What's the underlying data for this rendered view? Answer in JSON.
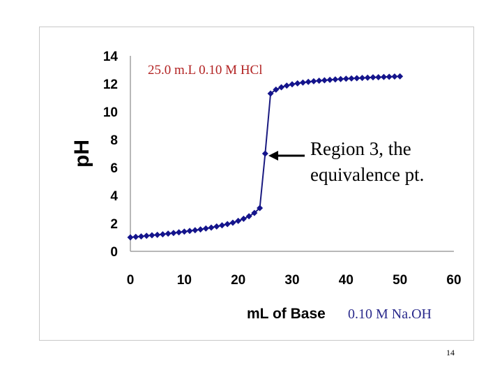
{
  "colors": {
    "series": "#1a1a80",
    "marker": "#14148c",
    "arrow": "#000000",
    "hcl_annotation": "#b22222",
    "naoh_annotation": "#2a2a8c"
  },
  "page_number": "14",
  "chart_data": {
    "type": "line",
    "xlabel": "mL of Base",
    "ylabel": "pH",
    "xlim": [
      0,
      60
    ],
    "ylim": [
      0,
      14
    ],
    "xticks": [
      "0",
      "10",
      "20",
      "30",
      "40",
      "50",
      "60"
    ],
    "yticks": [
      "0",
      "2",
      "4",
      "6",
      "8",
      "10",
      "12",
      "14"
    ],
    "grid": false,
    "annotations": {
      "analyte": "25.0 m.L 0.10 M HCl",
      "equivalence_line1": "Region 3, the",
      "equivalence_line2": "equivalence pt.",
      "titrant": "0.10 M Na.OH"
    },
    "series": [
      {
        "marker": "diamond",
        "points": [
          [
            0,
            1.0
          ],
          [
            1,
            1.04
          ],
          [
            2,
            1.07
          ],
          [
            3,
            1.11
          ],
          [
            4,
            1.15
          ],
          [
            5,
            1.18
          ],
          [
            6,
            1.22
          ],
          [
            7,
            1.27
          ],
          [
            8,
            1.31
          ],
          [
            9,
            1.36
          ],
          [
            10,
            1.41
          ],
          [
            11,
            1.46
          ],
          [
            12,
            1.51
          ],
          [
            13,
            1.57
          ],
          [
            14,
            1.64
          ],
          [
            15,
            1.7
          ],
          [
            16,
            1.78
          ],
          [
            17,
            1.86
          ],
          [
            18,
            1.95
          ],
          [
            19,
            2.05
          ],
          [
            20,
            2.18
          ],
          [
            21,
            2.33
          ],
          [
            22,
            2.51
          ],
          [
            23,
            2.75
          ],
          [
            24,
            3.1
          ],
          [
            25,
            7.0
          ],
          [
            26,
            11.3
          ],
          [
            27,
            11.58
          ],
          [
            28,
            11.75
          ],
          [
            29,
            11.87
          ],
          [
            30,
            11.96
          ],
          [
            31,
            12.03
          ],
          [
            32,
            12.09
          ],
          [
            33,
            12.14
          ],
          [
            34,
            12.18
          ],
          [
            35,
            12.22
          ],
          [
            36,
            12.25
          ],
          [
            37,
            12.28
          ],
          [
            38,
            12.31
          ],
          [
            39,
            12.34
          ],
          [
            40,
            12.36
          ],
          [
            41,
            12.38
          ],
          [
            42,
            12.4
          ],
          [
            43,
            12.42
          ],
          [
            44,
            12.44
          ],
          [
            45,
            12.46
          ],
          [
            46,
            12.47
          ],
          [
            47,
            12.49
          ],
          [
            48,
            12.5
          ],
          [
            49,
            12.52
          ],
          [
            50,
            12.53
          ]
        ]
      }
    ]
  }
}
